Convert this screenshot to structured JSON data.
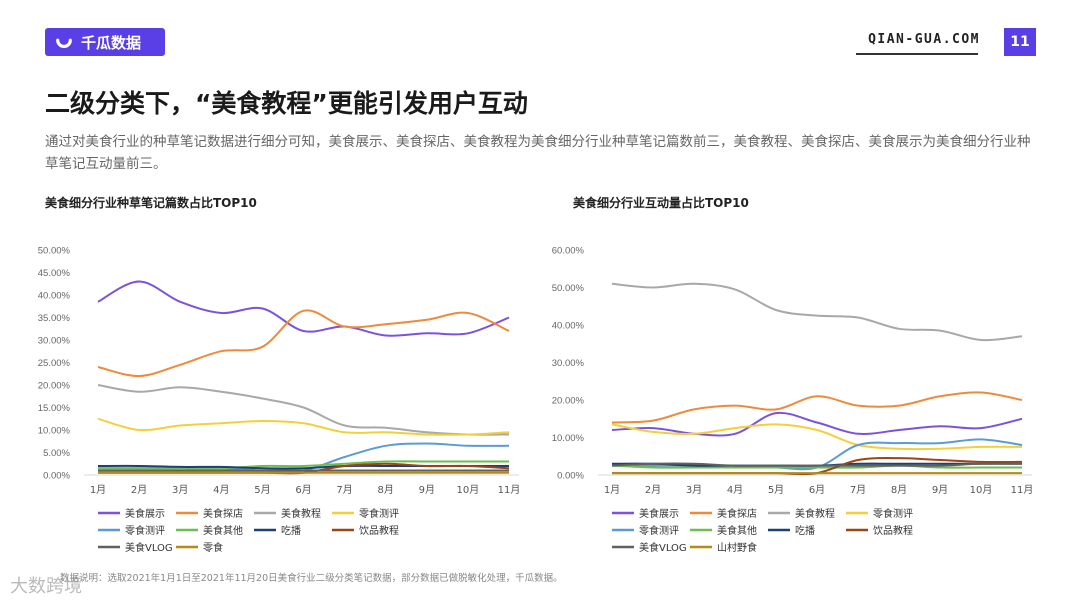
{
  "brand": {
    "name": "千瓜数据",
    "site": "QIAN-GUA.COM",
    "page": "11"
  },
  "title": "二级分类下，“美食教程”更能引发用户互动",
  "description": "通过对美食行业的种草笔记数据进行细分可知，美食展示、美食探店、美食教程为美食细分行业种草笔记篇数前三，美食教程、美食探店、美食展示为美食细分行业种草笔记互动量前三。",
  "note": "数据说明：选取2021年1月1日至2021年11月20日美食行业二级分类笔记数据，部分数据已做脱敏化处理，千瓜数据。",
  "watermark": "大数跨境",
  "chart_data": [
    {
      "type": "line",
      "title": "美食细分行业种草笔记篇数占比TOP10",
      "categories": [
        "1月",
        "2月",
        "3月",
        "4月",
        "5月",
        "6月",
        "7月",
        "8月",
        "9月",
        "10月",
        "11月"
      ],
      "ylim": [
        0,
        50
      ],
      "yticks": [
        "0.00%",
        "5.00%",
        "10.00%",
        "15.00%",
        "20.00%",
        "25.00%",
        "30.00%",
        "35.00%",
        "40.00%",
        "45.00%",
        "50.00%"
      ],
      "series": [
        {
          "name": "美食展示",
          "color": "#7b52e0",
          "values": [
            38.5,
            43,
            38.5,
            36,
            37,
            32,
            33,
            31,
            31.5,
            31.5,
            35
          ]
        },
        {
          "name": "美食探店",
          "color": "#ef8a3b",
          "values": [
            24,
            22,
            24.5,
            27.5,
            28.5,
            36.5,
            33,
            33.5,
            34.5,
            36,
            32
          ]
        },
        {
          "name": "美食教程",
          "color": "#a8a8a8",
          "values": [
            20,
            18.5,
            19.5,
            18.5,
            17,
            15,
            11,
            10.5,
            9.5,
            9,
            9
          ]
        },
        {
          "name": "零食测评",
          "color": "#f4cf3a",
          "values": [
            12.5,
            10,
            11,
            11.5,
            12,
            11.5,
            9.5,
            9.5,
            9,
            9,
            9.5
          ]
        },
        {
          "name": "零食测评",
          "color": "#5b9bd5",
          "values": [
            1.5,
            1.5,
            1.5,
            1.5,
            1,
            1,
            4,
            6.5,
            7,
            6.5,
            6.5
          ]
        },
        {
          "name": "美食其他",
          "color": "#6cbf4f",
          "values": [
            1.5,
            1.5,
            1.5,
            1.5,
            2,
            2,
            2.5,
            3,
            3,
            3,
            3
          ]
        },
        {
          "name": "吃播",
          "color": "#1f3f7a",
          "values": [
            2,
            2,
            1.8,
            1.8,
            1.5,
            1.5,
            2,
            2,
            2,
            2,
            2
          ]
        },
        {
          "name": "饮品教程",
          "color": "#9c4513",
          "values": [
            0.5,
            0.5,
            0.5,
            0.5,
            0.5,
            0.5,
            2,
            2.5,
            2,
            2,
            1.5
          ]
        },
        {
          "name": "美食VLOG",
          "color": "#606060",
          "values": [
            1,
            1,
            1,
            1,
            1,
            1,
            1,
            1,
            1,
            1,
            1
          ]
        },
        {
          "name": "零食",
          "color": "#b58a10",
          "values": [
            0.5,
            0.5,
            0.5,
            0.5,
            0.5,
            0.5,
            0.5,
            0.5,
            0.5,
            0.5,
            0.5
          ]
        }
      ]
    },
    {
      "type": "line",
      "title": "美食细分行业互动量占比TOP10",
      "categories": [
        "1月",
        "2月",
        "3月",
        "4月",
        "5月",
        "6月",
        "7月",
        "8月",
        "9月",
        "10月",
        "11月"
      ],
      "ylim": [
        0,
        60
      ],
      "yticks": [
        "0.00%",
        "10.00%",
        "20.00%",
        "30.00%",
        "40.00%",
        "50.00%",
        "60.00%"
      ],
      "series": [
        {
          "name": "美食展示",
          "color": "#7b52e0",
          "values": [
            12,
            12.5,
            11,
            11,
            16.5,
            14,
            11,
            12,
            13,
            12.5,
            15
          ]
        },
        {
          "name": "美食探店",
          "color": "#ef8a3b",
          "values": [
            14,
            14.5,
            17.5,
            18.5,
            17.5,
            21,
            18.5,
            18.5,
            21,
            22,
            20
          ]
        },
        {
          "name": "美食教程",
          "color": "#a8a8a8",
          "values": [
            51,
            50,
            51,
            49.5,
            44,
            42.5,
            42,
            39,
            38.5,
            36,
            37
          ]
        },
        {
          "name": "零食测评",
          "color": "#f4cf3a",
          "values": [
            13.5,
            11.5,
            11,
            12.5,
            13.5,
            12,
            8,
            7,
            7,
            7.5,
            7.5
          ]
        },
        {
          "name": "零食测评",
          "color": "#5b9bd5",
          "values": [
            2.5,
            2.5,
            2.5,
            2.5,
            2,
            2,
            8,
            8.5,
            8.5,
            9.5,
            8
          ]
        },
        {
          "name": "美食其他",
          "color": "#6cbf4f",
          "values": [
            2.5,
            2,
            2,
            2,
            2,
            2,
            2,
            2.5,
            2,
            2,
            2
          ]
        },
        {
          "name": "吃播",
          "color": "#1f3f7a",
          "values": [
            3,
            3,
            2.5,
            2.5,
            2.5,
            2.5,
            3,
            3,
            3,
            3,
            3
          ]
        },
        {
          "name": "饮品教程",
          "color": "#9c4513",
          "values": [
            0.5,
            0.5,
            0.5,
            0.5,
            0.5,
            0.5,
            4,
            4.5,
            4,
            3.5,
            3.5
          ]
        },
        {
          "name": "美食VLOG",
          "color": "#606060",
          "values": [
            2.5,
            3,
            3,
            2.5,
            2.5,
            2.5,
            2.5,
            2.5,
            2.5,
            3,
            3
          ]
        },
        {
          "name": "山村野食",
          "color": "#b58a10",
          "values": [
            0.5,
            0.5,
            0.5,
            0.5,
            0.5,
            0.5,
            0.5,
            0.5,
            0.5,
            0.5,
            0.5
          ]
        }
      ]
    }
  ]
}
